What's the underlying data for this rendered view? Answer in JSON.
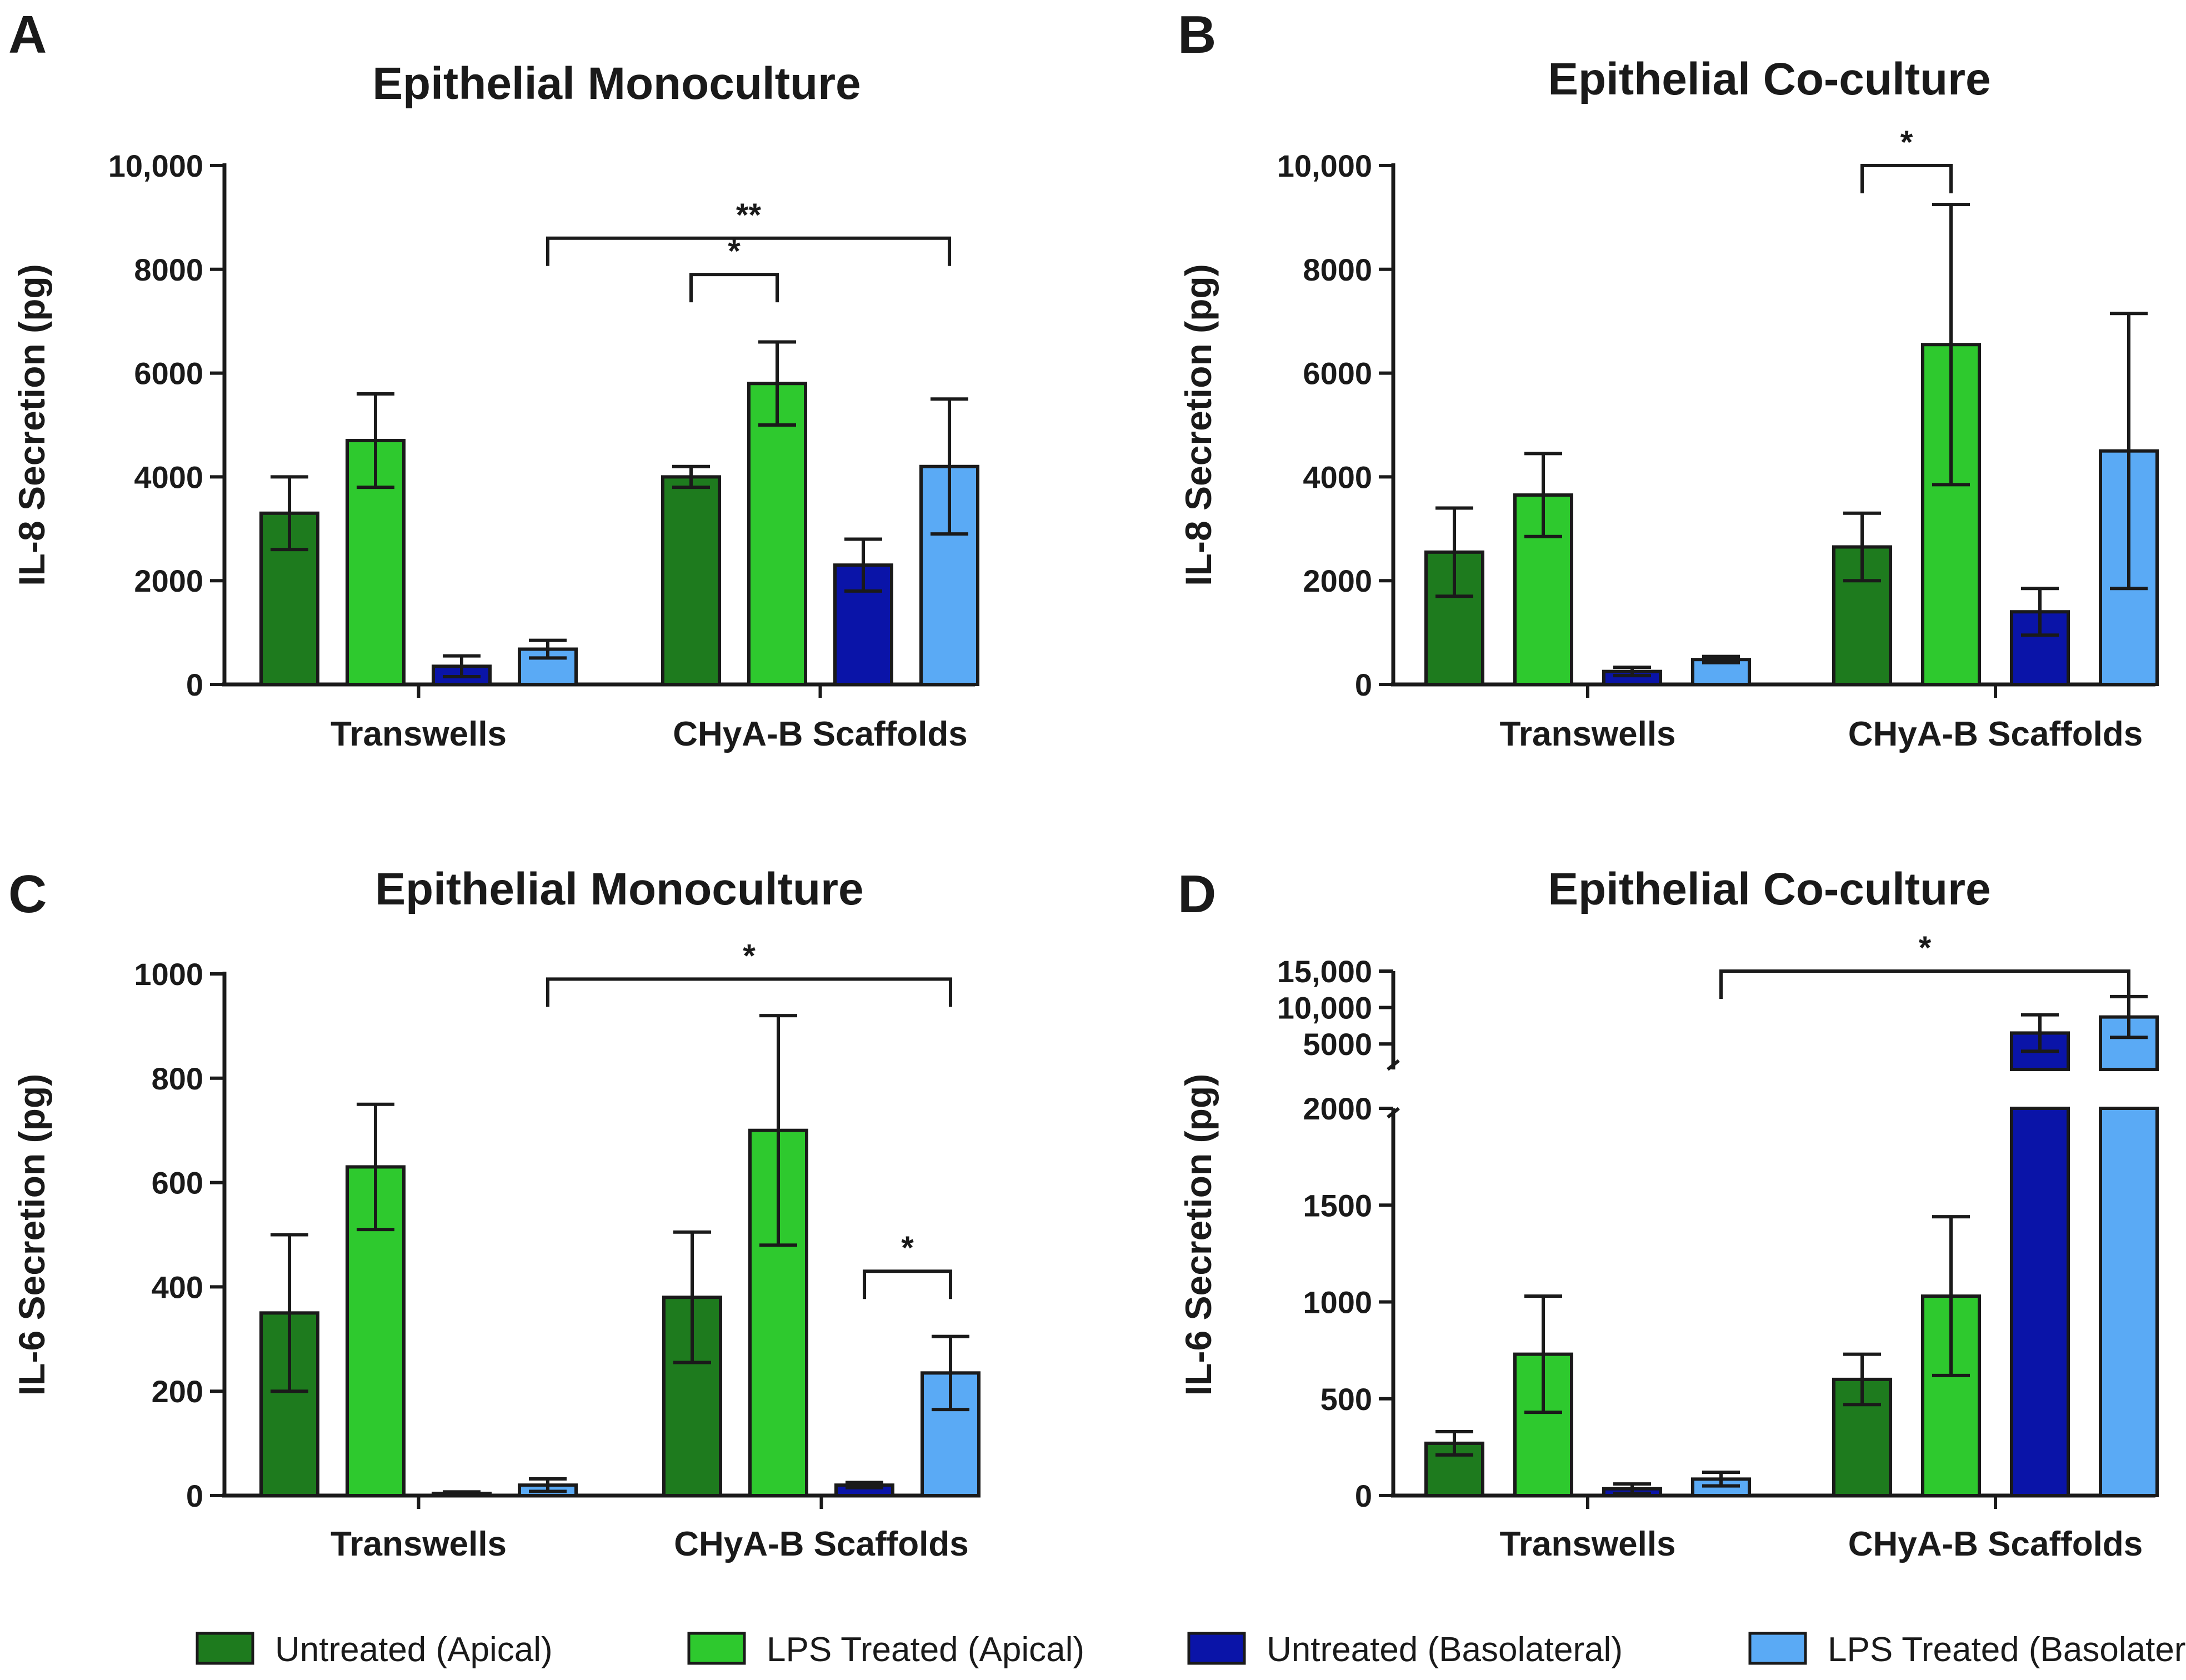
{
  "colors": {
    "untreated_apical": "#1e7b1e",
    "lps_apical": "#2ec92e",
    "untreated_basolateral": "#0a14a8",
    "lps_basolateral": "#5aaaf5",
    "ink": "#1a1a1a"
  },
  "legend": [
    {
      "key": "untreated_apical",
      "label": "Untreated (Apical)"
    },
    {
      "key": "lps_apical",
      "label": "LPS Treated (Apical)"
    },
    {
      "key": "untreated_basolateral",
      "label": "Untreated (Basolateral)"
    },
    {
      "key": "lps_basolateral",
      "label": "LPS Treated (Basolateral)"
    }
  ],
  "chart_data": [
    {
      "panel": "A",
      "type": "bar",
      "title": "Epithelial  Monoculture",
      "ylabel": "IL-8  Secretion  (pg)",
      "ylim": [
        0,
        10000
      ],
      "yticks": [
        0,
        2000,
        4000,
        6000,
        8000,
        10000
      ],
      "ytick_labels": [
        "0",
        "2000",
        "4000",
        "6000",
        "8000",
        "10,000"
      ],
      "categories": [
        "Transwells",
        "CHyA-B Scaffolds"
      ],
      "series": [
        {
          "key": "untreated_apical",
          "name": "Untreated (Apical)",
          "values": [
            3300,
            4000
          ],
          "errors": [
            700,
            200
          ]
        },
        {
          "key": "lps_apical",
          "name": "LPS Treated (Apical)",
          "values": [
            4700,
            5800
          ],
          "errors": [
            900,
            800
          ]
        },
        {
          "key": "untreated_basolateral",
          "name": "Untreated (Basolateral)",
          "values": [
            350,
            2300
          ],
          "errors": [
            200,
            500
          ]
        },
        {
          "key": "lps_basolateral",
          "name": "LPS Treated (Basolateral)",
          "values": [
            680,
            4200
          ],
          "errors": [
            170,
            1300
          ]
        }
      ],
      "significance": [
        {
          "from": [
            1,
            0
          ],
          "to": [
            1,
            1
          ],
          "label": "*",
          "y": 7900
        },
        {
          "from": [
            0,
            3
          ],
          "to": [
            1,
            3
          ],
          "label": "**",
          "y": 8600
        }
      ]
    },
    {
      "panel": "B",
      "type": "bar",
      "title": "Epithelial  Co-culture",
      "ylabel": "IL-8  Secretion  (pg)",
      "ylim": [
        0,
        10000
      ],
      "yticks": [
        0,
        2000,
        4000,
        6000,
        8000,
        10000
      ],
      "ytick_labels": [
        "0",
        "2000",
        "4000",
        "6000",
        "8000",
        "10,000"
      ],
      "categories": [
        "Transwells",
        "CHyA-B Scaffolds"
      ],
      "series": [
        {
          "key": "untreated_apical",
          "name": "Untreated (Apical)",
          "values": [
            2550,
            2650
          ],
          "errors": [
            850,
            650
          ]
        },
        {
          "key": "lps_apical",
          "name": "LPS Treated (Apical)",
          "values": [
            3650,
            6550
          ],
          "errors": [
            800,
            2700
          ]
        },
        {
          "key": "untreated_basolateral",
          "name": "Untreated (Basolateral)",
          "values": [
            250,
            1400
          ],
          "errors": [
            80,
            450
          ]
        },
        {
          "key": "lps_basolateral",
          "name": "LPS Treated (Basolateral)",
          "values": [
            480,
            4500
          ],
          "errors": [
            60,
            2650
          ]
        }
      ],
      "significance": [
        {
          "from": [
            1,
            0
          ],
          "to": [
            1,
            1
          ],
          "label": "*",
          "y": 10000
        }
      ]
    },
    {
      "panel": "C",
      "type": "bar",
      "title": "Epithelial  Monoculture",
      "ylabel": "IL-6  Secretion  (pg)",
      "ylim": [
        0,
        1000
      ],
      "yticks": [
        0,
        200,
        400,
        600,
        800,
        1000
      ],
      "ytick_labels": [
        "0",
        "200",
        "400",
        "600",
        "800",
        "1000"
      ],
      "categories": [
        "Transwells",
        "CHyA-B Scaffolds"
      ],
      "series": [
        {
          "key": "untreated_apical",
          "name": "Untreated (Apical)",
          "values": [
            350,
            380
          ],
          "errors": [
            150,
            125
          ]
        },
        {
          "key": "lps_apical",
          "name": "LPS Treated (Apical)",
          "values": [
            630,
            700
          ],
          "errors": [
            120,
            220
          ]
        },
        {
          "key": "untreated_basolateral",
          "name": "Untreated (Basolateral)",
          "values": [
            4,
            20
          ],
          "errors": [
            3,
            5
          ]
        },
        {
          "key": "lps_basolateral",
          "name": "LPS Treated (Basolateral)",
          "values": [
            20,
            235
          ],
          "errors": [
            12,
            70
          ]
        }
      ],
      "significance": [
        {
          "from": [
            1,
            2
          ],
          "to": [
            1,
            3
          ],
          "label": "*",
          "y": 430
        },
        {
          "from": [
            0,
            3
          ],
          "to": [
            1,
            3
          ],
          "label": "*",
          "y": 990
        }
      ]
    },
    {
      "panel": "D",
      "type": "bar",
      "title": "Epithelial  Co-culture",
      "ylabel": "IL-6  Secretion  (pg)",
      "broken_axis": true,
      "lower_range": [
        0,
        2000
      ],
      "lower_ticks": [
        0,
        500,
        1000,
        1500,
        2000
      ],
      "lower_tick_labels": [
        "0",
        "500",
        "1000",
        "1500",
        "2000"
      ],
      "upper_range": [
        1500,
        15000
      ],
      "upper_ticks": [
        5000,
        10000,
        15000
      ],
      "upper_tick_labels": [
        "5000",
        "10,000",
        "15,000"
      ],
      "categories": [
        "Transwells",
        "CHyA-B Scaffolds"
      ],
      "series": [
        {
          "key": "untreated_apical",
          "name": "Untreated (Apical)",
          "values": [
            270,
            600
          ],
          "errors": [
            60,
            130
          ]
        },
        {
          "key": "lps_apical",
          "name": "LPS Treated (Apical)",
          "values": [
            730,
            1030
          ],
          "errors": [
            300,
            410
          ]
        },
        {
          "key": "untreated_basolateral",
          "name": "Untreated (Basolateral)",
          "values": [
            35,
            6500
          ],
          "errors": [
            25,
            2500
          ]
        },
        {
          "key": "lps_basolateral",
          "name": "LPS Treated (Basolateral)",
          "values": [
            85,
            8700
          ],
          "errors": [
            35,
            2800
          ]
        }
      ],
      "significance": [
        {
          "from": [
            0,
            3
          ],
          "to": [
            1,
            3
          ],
          "label": "*",
          "y": 15000
        }
      ]
    }
  ]
}
